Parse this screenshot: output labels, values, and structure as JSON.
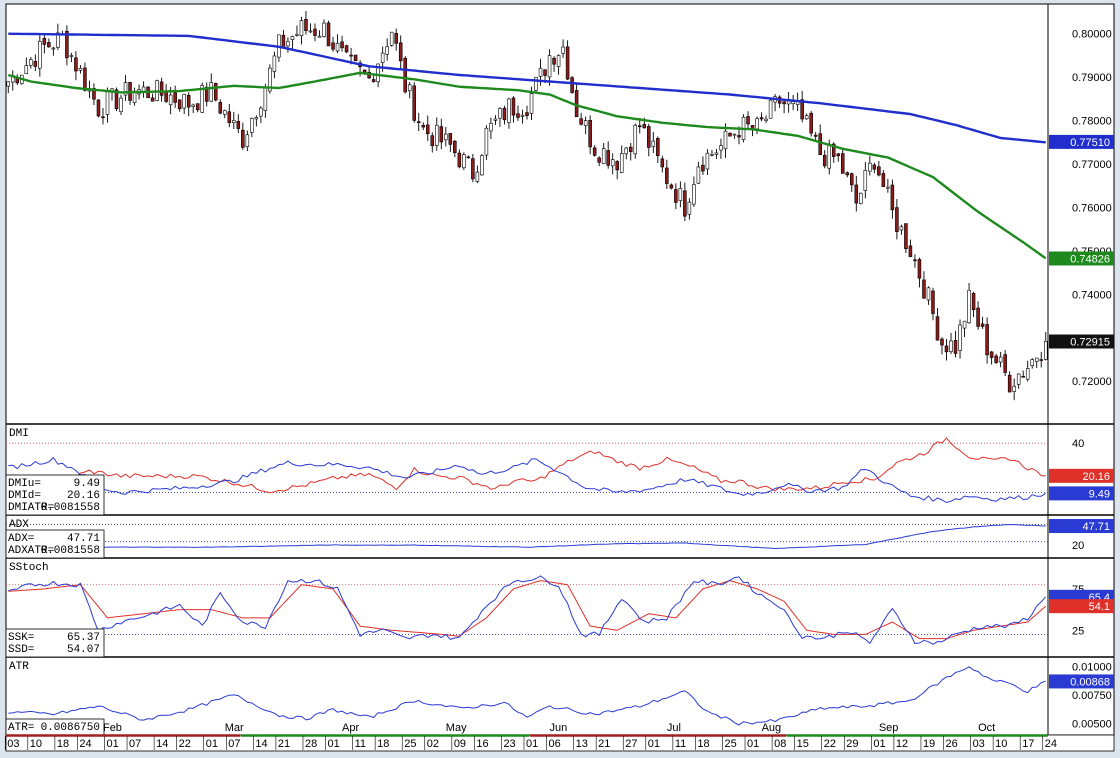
{
  "chart_data": {
    "type": "candlestick",
    "colors": {
      "up_candle": "#ffffff",
      "down_candle": "#8b1a1a",
      "ma_long": "#1f2ecc",
      "ma_short": "#1e8a1e",
      "dmi_up": "#2a3bd4",
      "dmi_down": "#e0302a",
      "stoch_k": "#2a3bd4",
      "stoch_d": "#e0302a",
      "last_price_badge": "#111111"
    },
    "price_panel": {
      "ylim": [
        0.712,
        0.805
      ],
      "y_ticks": [
        "0.80000",
        "0.79000",
        "0.78000",
        "0.77000",
        "0.76000",
        "0.75000",
        "0.74000",
        "0.73000",
        "0.72000"
      ],
      "y_tick_values": [
        0.8,
        0.79,
        0.78,
        0.77,
        0.76,
        0.75,
        0.74,
        0.73,
        0.72
      ],
      "badges": [
        {
          "label": "0.77510",
          "value": 0.7751,
          "color": "#1f2ecc"
        },
        {
          "label": "0.74826",
          "value": 0.74826,
          "color": "#1e8a1e"
        },
        {
          "label": "0.72915",
          "value": 0.72915,
          "color": "#111111"
        }
      ],
      "ma_long_points": [
        [
          0,
          0.8
        ],
        [
          40,
          0.7995
        ],
        [
          60,
          0.797
        ],
        [
          80,
          0.7925
        ],
        [
          100,
          0.7905
        ],
        [
          120,
          0.789
        ],
        [
          140,
          0.7875
        ],
        [
          160,
          0.786
        ],
        [
          180,
          0.784
        ],
        [
          200,
          0.7815
        ],
        [
          210,
          0.779
        ],
        [
          220,
          0.776
        ],
        [
          230,
          0.775
        ]
      ],
      "ma_short_points": [
        [
          0,
          0.7905
        ],
        [
          5,
          0.789
        ],
        [
          15,
          0.7875
        ],
        [
          25,
          0.7865
        ],
        [
          38,
          0.7868
        ],
        [
          50,
          0.788
        ],
        [
          60,
          0.7875
        ],
        [
          68,
          0.789
        ],
        [
          78,
          0.791
        ],
        [
          90,
          0.7895
        ],
        [
          100,
          0.7878
        ],
        [
          113,
          0.787
        ],
        [
          120,
          0.786
        ],
        [
          126,
          0.7835
        ],
        [
          135,
          0.781
        ],
        [
          145,
          0.7795
        ],
        [
          155,
          0.7785
        ],
        [
          165,
          0.778
        ],
        [
          175,
          0.7765
        ],
        [
          185,
          0.7735
        ],
        [
          195,
          0.7715
        ],
        [
          205,
          0.767
        ],
        [
          215,
          0.759
        ],
        [
          225,
          0.752
        ],
        [
          230,
          0.7483
        ]
      ],
      "candle_anchors": [
        [
          0,
          0.789
        ],
        [
          8,
          0.797
        ],
        [
          12,
          0.799
        ],
        [
          20,
          0.783
        ],
        [
          28,
          0.787
        ],
        [
          35,
          0.786
        ],
        [
          40,
          0.784
        ],
        [
          45,
          0.7865
        ],
        [
          50,
          0.7785
        ],
        [
          52,
          0.776
        ],
        [
          57,
          0.788
        ],
        [
          60,
          0.797
        ],
        [
          65,
          0.801
        ],
        [
          70,
          0.801
        ],
        [
          75,
          0.793
        ],
        [
          80,
          0.7895
        ],
        [
          85,
          0.801
        ],
        [
          88,
          0.788
        ],
        [
          92,
          0.778
        ],
        [
          98,
          0.774
        ],
        [
          103,
          0.768
        ],
        [
          106,
          0.777
        ],
        [
          111,
          0.783
        ],
        [
          115,
          0.784
        ],
        [
          118,
          0.79
        ],
        [
          120,
          0.795
        ],
        [
          123,
          0.797
        ],
        [
          126,
          0.7825
        ],
        [
          130,
          0.774
        ],
        [
          135,
          0.771
        ],
        [
          140,
          0.779
        ],
        [
          145,
          0.7685
        ],
        [
          150,
          0.7605
        ],
        [
          153,
          0.7705
        ],
        [
          158,
          0.774
        ],
        [
          162,
          0.7785
        ],
        [
          166,
          0.778
        ],
        [
          171,
          0.7845
        ],
        [
          175,
          0.782
        ],
        [
          180,
          0.7725
        ],
        [
          184,
          0.771
        ],
        [
          188,
          0.761
        ],
        [
          192,
          0.7715
        ],
        [
          196,
          0.7585
        ],
        [
          200,
          0.7505
        ],
        [
          203,
          0.742
        ],
        [
          207,
          0.729
        ],
        [
          210,
          0.728
        ],
        [
          213,
          0.7385
        ],
        [
          217,
          0.728
        ],
        [
          222,
          0.72
        ],
        [
          226,
          0.7235
        ],
        [
          230,
          0.7292
        ]
      ]
    },
    "x_axis": {
      "date_ticks": [
        "03",
        "10",
        "18",
        "24",
        "01",
        "07",
        "14",
        "22",
        "01",
        "07",
        "14",
        "21",
        "28",
        "01",
        "11",
        "18",
        "25",
        "02",
        "09",
        "16",
        "23",
        "01",
        "06",
        "13",
        "21",
        "27",
        "01",
        "11",
        "18",
        "25",
        "01",
        "08",
        "15",
        "22",
        "29",
        "01",
        "12",
        "19",
        "26",
        "03",
        "10",
        "17",
        "24"
      ],
      "month_labels": [
        "Feb",
        "Mar",
        "Apr",
        "May",
        "Jun",
        "Jul",
        "Aug",
        "Sep",
        "Oct"
      ],
      "month_positions": [
        21,
        48,
        74,
        97,
        120,
        146,
        167,
        193,
        215
      ]
    },
    "dmi_panel": {
      "title": "DMI",
      "ylim": [
        0,
        48
      ],
      "y_ticks": [
        "40"
      ],
      "y_tick_values": [
        40
      ],
      "upper_ref": 40,
      "lower_ref": 10,
      "readout": [
        {
          "label": "DMIu=",
          "value": "9.49"
        },
        {
          "label": "DMId=",
          "value": "20.16"
        },
        {
          "label": "DMIATR=",
          "value": "0.0081558"
        }
      ],
      "badges": [
        {
          "label": "20.16",
          "value": 20.16,
          "color": "#e0302a"
        },
        {
          "label": "9.49",
          "value": 9.49,
          "color": "#2a3bd4"
        }
      ],
      "up_anchors": [
        [
          0,
          25
        ],
        [
          10,
          30
        ],
        [
          15,
          24
        ],
        [
          20,
          13
        ],
        [
          25,
          10
        ],
        [
          30,
          11
        ],
        [
          40,
          13
        ],
        [
          50,
          17
        ],
        [
          58,
          25
        ],
        [
          62,
          28
        ],
        [
          68,
          27
        ],
        [
          74,
          27
        ],
        [
          80,
          25
        ],
        [
          88,
          19
        ],
        [
          95,
          23
        ],
        [
          100,
          27
        ],
        [
          105,
          21
        ],
        [
          112,
          25
        ],
        [
          117,
          30
        ],
        [
          122,
          23
        ],
        [
          128,
          13
        ],
        [
          135,
          10
        ],
        [
          142,
          12
        ],
        [
          150,
          18
        ],
        [
          156,
          14
        ],
        [
          162,
          9
        ],
        [
          167,
          10
        ],
        [
          172,
          15
        ],
        [
          178,
          11
        ],
        [
          185,
          13
        ],
        [
          190,
          25
        ],
        [
          195,
          15
        ],
        [
          200,
          8
        ],
        [
          208,
          5
        ],
        [
          213,
          8
        ],
        [
          218,
          6
        ],
        [
          225,
          7
        ],
        [
          230,
          9.5
        ]
      ],
      "down_anchors": [
        [
          0,
          20
        ],
        [
          10,
          15
        ],
        [
          18,
          23
        ],
        [
          25,
          20
        ],
        [
          35,
          20
        ],
        [
          42,
          20
        ],
        [
          50,
          16
        ],
        [
          58,
          11
        ],
        [
          65,
          14
        ],
        [
          73,
          19
        ],
        [
          80,
          21
        ],
        [
          86,
          13
        ],
        [
          90,
          24
        ],
        [
          95,
          20
        ],
        [
          100,
          19
        ],
        [
          108,
          12
        ],
        [
          112,
          17
        ],
        [
          117,
          17
        ],
        [
          125,
          30
        ],
        [
          130,
          35
        ],
        [
          135,
          29
        ],
        [
          140,
          25
        ],
        [
          146,
          30
        ],
        [
          152,
          25
        ],
        [
          158,
          17
        ],
        [
          162,
          17
        ],
        [
          167,
          13
        ],
        [
          172,
          12
        ],
        [
          180,
          13
        ],
        [
          186,
          17
        ],
        [
          192,
          18
        ],
        [
          197,
          28
        ],
        [
          203,
          34
        ],
        [
          208,
          43
        ],
        [
          213,
          32
        ],
        [
          218,
          29
        ],
        [
          222,
          31
        ],
        [
          226,
          25
        ],
        [
          230,
          20.2
        ]
      ]
    },
    "adx_panel": {
      "title": "ADX",
      "ylim": [
        10,
        55
      ],
      "y_ticks": [
        "20"
      ],
      "y_tick_values": [
        20
      ],
      "upper_ref": 50,
      "lower_ref": 25,
      "readout": [
        {
          "label": "ADX=",
          "value": "47.71"
        },
        {
          "label": "ADXATR=",
          "value": "0.0081558"
        }
      ],
      "badges": [
        {
          "label": "47.71",
          "value": 47.71,
          "color": "#2a3bd4"
        }
      ],
      "line_anchors": [
        [
          0,
          17
        ],
        [
          30,
          17
        ],
        [
          45,
          17
        ],
        [
          70,
          20
        ],
        [
          90,
          20
        ],
        [
          115,
          17
        ],
        [
          135,
          22
        ],
        [
          150,
          23
        ],
        [
          170,
          15
        ],
        [
          190,
          21
        ],
        [
          205,
          40
        ],
        [
          215,
          47
        ],
        [
          222,
          50
        ],
        [
          230,
          47.7
        ]
      ]
    },
    "stoch_panel": {
      "title": "SStoch",
      "ylim": [
        0,
        105
      ],
      "y_ticks": [
        "75",
        "25"
      ],
      "y_tick_values": [
        75,
        25
      ],
      "upper_ref": 80,
      "lower_ref": 20,
      "readout": [
        {
          "label": "SSK=",
          "value": "65.37"
        },
        {
          "label": "SSD=",
          "value": "54.07"
        }
      ],
      "badges": [
        {
          "label": "65.4",
          "value": 65.4,
          "color": "#2a3bd4"
        },
        {
          "label": "54.1",
          "value": 54.1,
          "color": "#e0302a"
        }
      ],
      "k_anchors": [
        [
          0,
          70
        ],
        [
          5,
          80
        ],
        [
          10,
          82
        ],
        [
          16,
          80
        ],
        [
          20,
          25
        ],
        [
          25,
          35
        ],
        [
          32,
          45
        ],
        [
          38,
          55
        ],
        [
          43,
          30
        ],
        [
          47,
          70
        ],
        [
          52,
          35
        ],
        [
          57,
          30
        ],
        [
          62,
          85
        ],
        [
          68,
          85
        ],
        [
          73,
          75
        ],
        [
          78,
          20
        ],
        [
          83,
          25
        ],
        [
          88,
          15
        ],
        [
          94,
          20
        ],
        [
          100,
          15
        ],
        [
          106,
          55
        ],
        [
          112,
          85
        ],
        [
          118,
          88
        ],
        [
          122,
          80
        ],
        [
          127,
          20
        ],
        [
          131,
          20
        ],
        [
          136,
          65
        ],
        [
          141,
          35
        ],
        [
          146,
          40
        ],
        [
          152,
          85
        ],
        [
          157,
          80
        ],
        [
          162,
          90
        ],
        [
          166,
          70
        ],
        [
          171,
          55
        ],
        [
          176,
          18
        ],
        [
          181,
          15
        ],
        [
          186,
          25
        ],
        [
          191,
          10
        ],
        [
          196,
          50
        ],
        [
          201,
          12
        ],
        [
          206,
          10
        ],
        [
          211,
          22
        ],
        [
          216,
          30
        ],
        [
          222,
          30
        ],
        [
          226,
          40
        ],
        [
          230,
          65.4
        ]
      ],
      "d_anchors": [
        [
          0,
          72
        ],
        [
          8,
          75
        ],
        [
          16,
          80
        ],
        [
          22,
          40
        ],
        [
          30,
          45
        ],
        [
          38,
          50
        ],
        [
          45,
          50
        ],
        [
          52,
          40
        ],
        [
          58,
          40
        ],
        [
          65,
          80
        ],
        [
          72,
          75
        ],
        [
          78,
          30
        ],
        [
          85,
          25
        ],
        [
          92,
          22
        ],
        [
          100,
          18
        ],
        [
          106,
          40
        ],
        [
          112,
          75
        ],
        [
          118,
          85
        ],
        [
          124,
          80
        ],
        [
          129,
          30
        ],
        [
          135,
          25
        ],
        [
          142,
          45
        ],
        [
          148,
          40
        ],
        [
          154,
          75
        ],
        [
          160,
          85
        ],
        [
          166,
          75
        ],
        [
          172,
          60
        ],
        [
          177,
          25
        ],
        [
          183,
          20
        ],
        [
          190,
          20
        ],
        [
          196,
          35
        ],
        [
          202,
          15
        ],
        [
          208,
          15
        ],
        [
          214,
          25
        ],
        [
          220,
          30
        ],
        [
          226,
          35
        ],
        [
          230,
          54.1
        ]
      ]
    },
    "atr_panel": {
      "title": "ATR",
      "ylim": [
        0.0045,
        0.0103
      ],
      "y_ticks": [
        "0.01000",
        "0.00750",
        "0.00500"
      ],
      "y_tick_values": [
        0.01,
        0.0075,
        0.005
      ],
      "readout": [
        {
          "label": "ATR=",
          "value": "0.0086750"
        }
      ],
      "badges": [
        {
          "label": "0.00868",
          "value": 0.00868,
          "color": "#2a3bd4"
        }
      ],
      "line_anchors": [
        [
          0,
          0.006
        ],
        [
          10,
          0.0058
        ],
        [
          20,
          0.0065
        ],
        [
          30,
          0.0053
        ],
        [
          40,
          0.0062
        ],
        [
          50,
          0.0075
        ],
        [
          55,
          0.0066
        ],
        [
          60,
          0.0057
        ],
        [
          66,
          0.0054
        ],
        [
          72,
          0.0062
        ],
        [
          80,
          0.0055
        ],
        [
          90,
          0.007
        ],
        [
          100,
          0.0063
        ],
        [
          110,
          0.0068
        ],
        [
          115,
          0.0055
        ],
        [
          120,
          0.0065
        ],
        [
          130,
          0.0058
        ],
        [
          140,
          0.0065
        ],
        [
          150,
          0.0078
        ],
        [
          155,
          0.006
        ],
        [
          162,
          0.005
        ],
        [
          170,
          0.0052
        ],
        [
          180,
          0.0063
        ],
        [
          190,
          0.0065
        ],
        [
          200,
          0.007
        ],
        [
          208,
          0.009
        ],
        [
          213,
          0.01
        ],
        [
          218,
          0.0088
        ],
        [
          222,
          0.0085
        ],
        [
          226,
          0.0078
        ],
        [
          230,
          0.0087
        ]
      ]
    }
  }
}
